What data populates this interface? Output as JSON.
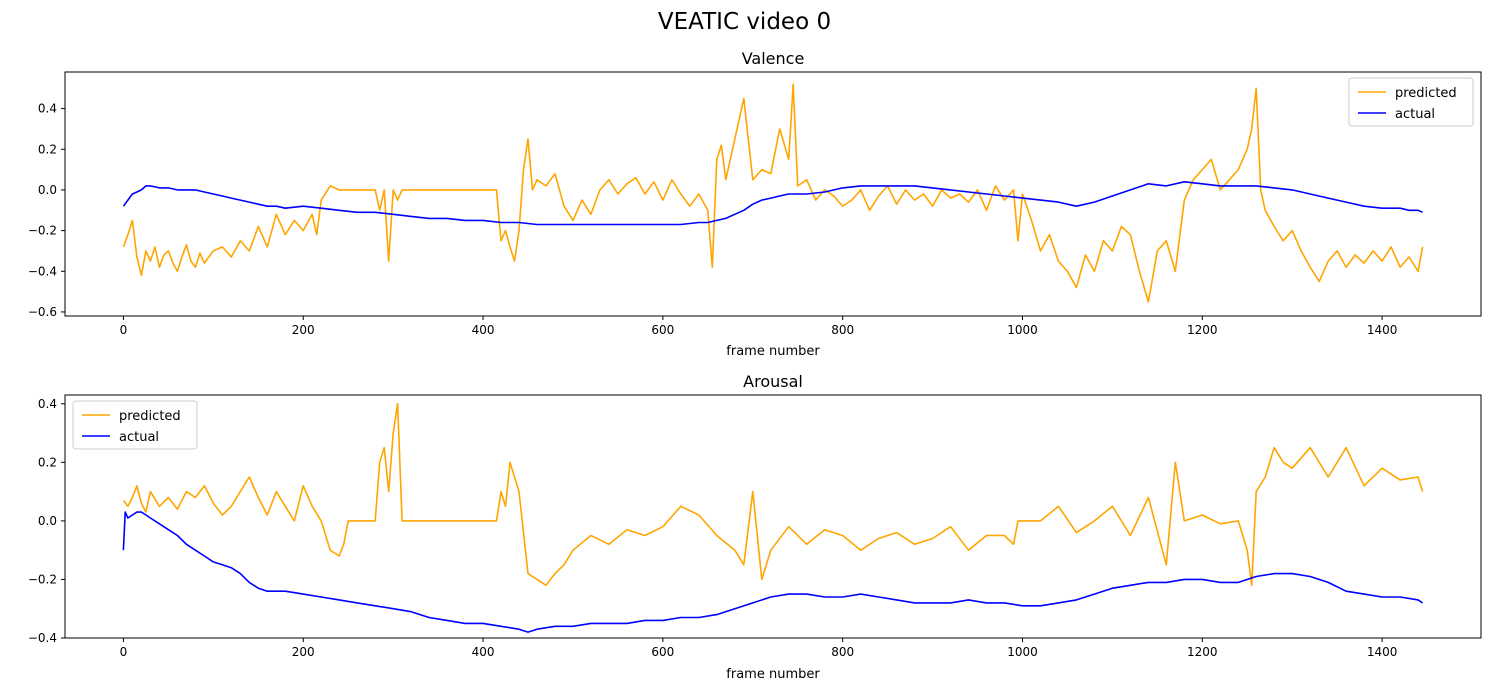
{
  "chart_data": {
    "title": "VEATIC video 0",
    "colors": {
      "predicted": "#FFA500",
      "actual": "#0000FF"
    },
    "subplots": [
      {
        "type": "line",
        "title": "Valence",
        "xlabel": "frame number",
        "ylabel": "",
        "xlim": [
          -65,
          1510
        ],
        "ylim": [
          -0.62,
          0.58
        ],
        "xticks": [
          0,
          200,
          400,
          600,
          800,
          1000,
          1200,
          1400
        ],
        "yticks": [
          -0.6,
          -0.4,
          -0.2,
          0.0,
          0.2,
          0.4
        ],
        "legend": "upper right",
        "series": [
          {
            "name": "predicted",
            "x": [
              0,
              5,
              10,
              15,
              20,
              25,
              30,
              35,
              40,
              45,
              50,
              55,
              60,
              65,
              70,
              75,
              80,
              85,
              90,
              95,
              100,
              110,
              120,
              130,
              140,
              150,
              160,
              170,
              180,
              190,
              200,
              210,
              215,
              220,
              230,
              240,
              250,
              260,
              270,
              280,
              285,
              290,
              295,
              300,
              305,
              310,
              320,
              340,
              360,
              380,
              400,
              415,
              420,
              425,
              430,
              435,
              440,
              445,
              450,
              455,
              460,
              470,
              480,
              490,
              500,
              510,
              520,
              530,
              540,
              550,
              560,
              570,
              580,
              590,
              600,
              610,
              620,
              630,
              640,
              650,
              655,
              660,
              665,
              670,
              680,
              690,
              700,
              710,
              720,
              730,
              740,
              745,
              750,
              760,
              770,
              780,
              790,
              800,
              810,
              820,
              830,
              840,
              850,
              860,
              870,
              880,
              890,
              900,
              910,
              920,
              930,
              940,
              950,
              960,
              970,
              980,
              990,
              995,
              1000,
              1010,
              1020,
              1030,
              1040,
              1050,
              1060,
              1070,
              1080,
              1090,
              1100,
              1110,
              1120,
              1130,
              1140,
              1150,
              1160,
              1170,
              1180,
              1190,
              1200,
              1210,
              1220,
              1230,
              1240,
              1250,
              1255,
              1260,
              1265,
              1270,
              1280,
              1290,
              1300,
              1310,
              1320,
              1330,
              1340,
              1350,
              1360,
              1370,
              1380,
              1390,
              1400,
              1410,
              1420,
              1430,
              1440,
              1445
            ],
            "y": [
              -0.28,
              -0.22,
              -0.15,
              -0.33,
              -0.42,
              -0.3,
              -0.35,
              -0.28,
              -0.38,
              -0.32,
              -0.3,
              -0.36,
              -0.4,
              -0.33,
              -0.27,
              -0.35,
              -0.38,
              -0.31,
              -0.36,
              -0.33,
              -0.3,
              -0.28,
              -0.33,
              -0.25,
              -0.3,
              -0.18,
              -0.28,
              -0.12,
              -0.22,
              -0.15,
              -0.2,
              -0.12,
              -0.22,
              -0.05,
              0.02,
              0.0,
              0.0,
              0.0,
              0.0,
              0.0,
              -0.1,
              0.0,
              -0.35,
              0.0,
              -0.05,
              0.0,
              0.0,
              0.0,
              0.0,
              0.0,
              0.0,
              0.0,
              -0.25,
              -0.2,
              -0.28,
              -0.35,
              -0.2,
              0.1,
              0.25,
              0.0,
              0.05,
              0.02,
              0.08,
              -0.08,
              -0.15,
              -0.05,
              -0.12,
              0.0,
              0.05,
              -0.02,
              0.03,
              0.06,
              -0.02,
              0.04,
              -0.05,
              0.05,
              -0.02,
              -0.08,
              -0.02,
              -0.1,
              -0.38,
              0.15,
              0.22,
              0.05,
              0.25,
              0.45,
              0.05,
              0.1,
              0.08,
              0.3,
              0.15,
              0.52,
              0.02,
              0.05,
              -0.05,
              0.0,
              -0.03,
              -0.08,
              -0.05,
              0.0,
              -0.1,
              -0.03,
              0.02,
              -0.07,
              0.0,
              -0.05,
              -0.02,
              -0.08,
              0.0,
              -0.04,
              -0.02,
              -0.06,
              0.0,
              -0.1,
              0.02,
              -0.05,
              0.0,
              -0.25,
              -0.02,
              -0.15,
              -0.3,
              -0.22,
              -0.35,
              -0.4,
              -0.48,
              -0.32,
              -0.4,
              -0.25,
              -0.3,
              -0.18,
              -0.22,
              -0.4,
              -0.55,
              -0.3,
              -0.25,
              -0.4,
              -0.05,
              0.05,
              0.1,
              0.15,
              0.0,
              0.05,
              0.1,
              0.2,
              0.3,
              0.5,
              0.0,
              -0.1,
              -0.18,
              -0.25,
              -0.2,
              -0.3,
              -0.38,
              -0.45,
              -0.35,
              -0.3,
              -0.38,
              -0.32,
              -0.36,
              -0.3,
              -0.35,
              -0.28,
              -0.38,
              -0.33,
              -0.4,
              -0.28
            ]
          },
          {
            "name": "actual",
            "x": [
              0,
              5,
              10,
              15,
              20,
              25,
              30,
              40,
              50,
              60,
              70,
              80,
              90,
              100,
              110,
              120,
              130,
              140,
              150,
              160,
              170,
              180,
              200,
              220,
              240,
              260,
              280,
              300,
              320,
              340,
              360,
              380,
              400,
              420,
              440,
              460,
              480,
              500,
              520,
              540,
              560,
              580,
              600,
              620,
              640,
              650,
              660,
              670,
              680,
              690,
              700,
              710,
              720,
              730,
              740,
              760,
              780,
              800,
              820,
              840,
              860,
              880,
              900,
              920,
              940,
              960,
              980,
              1000,
              1020,
              1040,
              1060,
              1080,
              1100,
              1120,
              1140,
              1160,
              1180,
              1200,
              1220,
              1240,
              1260,
              1280,
              1300,
              1320,
              1340,
              1360,
              1380,
              1400,
              1420,
              1430,
              1440,
              1445
            ],
            "y": [
              -0.08,
              -0.05,
              -0.02,
              -0.01,
              0.0,
              0.02,
              0.02,
              0.01,
              0.01,
              0.0,
              0.0,
              0.0,
              -0.01,
              -0.02,
              -0.03,
              -0.04,
              -0.05,
              -0.06,
              -0.07,
              -0.08,
              -0.08,
              -0.09,
              -0.08,
              -0.09,
              -0.1,
              -0.11,
              -0.11,
              -0.12,
              -0.13,
              -0.14,
              -0.14,
              -0.15,
              -0.15,
              -0.16,
              -0.16,
              -0.17,
              -0.17,
              -0.17,
              -0.17,
              -0.17,
              -0.17,
              -0.17,
              -0.17,
              -0.17,
              -0.16,
              -0.16,
              -0.15,
              -0.14,
              -0.12,
              -0.1,
              -0.07,
              -0.05,
              -0.04,
              -0.03,
              -0.02,
              -0.02,
              -0.01,
              0.01,
              0.02,
              0.02,
              0.02,
              0.02,
              0.01,
              0.0,
              -0.01,
              -0.02,
              -0.03,
              -0.04,
              -0.05,
              -0.06,
              -0.08,
              -0.06,
              -0.03,
              0.0,
              0.03,
              0.02,
              0.04,
              0.03,
              0.02,
              0.02,
              0.02,
              0.01,
              0.0,
              -0.02,
              -0.04,
              -0.06,
              -0.08,
              -0.09,
              -0.09,
              -0.1,
              -0.1,
              -0.11
            ]
          }
        ]
      },
      {
        "type": "line",
        "title": "Arousal",
        "xlabel": "frame number",
        "ylabel": "",
        "xlim": [
          -65,
          1510
        ],
        "ylim": [
          -0.4,
          0.43
        ],
        "xticks": [
          0,
          200,
          400,
          600,
          800,
          1000,
          1200,
          1400
        ],
        "yticks": [
          -0.4,
          -0.2,
          0.0,
          0.2,
          0.4
        ],
        "legend": "upper left",
        "series": [
          {
            "name": "predicted",
            "x": [
              0,
              5,
              10,
              15,
              20,
              25,
              30,
              40,
              50,
              60,
              70,
              80,
              90,
              100,
              110,
              120,
              130,
              140,
              150,
              160,
              170,
              180,
              190,
              200,
              210,
              220,
              230,
              240,
              245,
              250,
              270,
              280,
              285,
              290,
              295,
              300,
              305,
              310,
              320,
              340,
              360,
              380,
              400,
              415,
              420,
              425,
              430,
              440,
              450,
              460,
              470,
              480,
              490,
              500,
              520,
              540,
              560,
              580,
              600,
              620,
              640,
              660,
              680,
              690,
              700,
              710,
              720,
              740,
              760,
              780,
              800,
              820,
              840,
              860,
              880,
              900,
              920,
              940,
              960,
              980,
              990,
              995,
              1000,
              1020,
              1040,
              1060,
              1080,
              1100,
              1120,
              1140,
              1160,
              1170,
              1180,
              1200,
              1220,
              1240,
              1250,
              1255,
              1260,
              1270,
              1280,
              1290,
              1300,
              1320,
              1340,
              1360,
              1380,
              1400,
              1420,
              1440,
              1445
            ],
            "y": [
              0.07,
              0.05,
              0.08,
              0.12,
              0.06,
              0.03,
              0.1,
              0.05,
              0.08,
              0.04,
              0.1,
              0.08,
              0.12,
              0.06,
              0.02,
              0.05,
              0.1,
              0.15,
              0.08,
              0.02,
              0.1,
              0.05,
              0.0,
              0.12,
              0.05,
              0.0,
              -0.1,
              -0.12,
              -0.08,
              0.0,
              0.0,
              0.0,
              0.2,
              0.25,
              0.1,
              0.3,
              0.4,
              0.0,
              0.0,
              0.0,
              0.0,
              0.0,
              0.0,
              0.0,
              0.1,
              0.05,
              0.2,
              0.1,
              -0.18,
              -0.2,
              -0.22,
              -0.18,
              -0.15,
              -0.1,
              -0.05,
              -0.08,
              -0.03,
              -0.05,
              -0.02,
              0.05,
              0.02,
              -0.05,
              -0.1,
              -0.15,
              0.1,
              -0.2,
              -0.1,
              -0.02,
              -0.08,
              -0.03,
              -0.05,
              -0.1,
              -0.06,
              -0.04,
              -0.08,
              -0.06,
              -0.02,
              -0.1,
              -0.05,
              -0.05,
              -0.08,
              0.0,
              0.0,
              0.0,
              0.05,
              -0.04,
              0.0,
              0.05,
              -0.05,
              0.08,
              -0.15,
              0.2,
              0.0,
              0.02,
              -0.01,
              0.0,
              -0.1,
              -0.22,
              0.1,
              0.15,
              0.25,
              0.2,
              0.18,
              0.25,
              0.15,
              0.25,
              0.12,
              0.18,
              0.14,
              0.15,
              0.1
            ]
          },
          {
            "name": "actual",
            "x": [
              0,
              2,
              5,
              10,
              15,
              20,
              25,
              30,
              40,
              50,
              60,
              70,
              80,
              90,
              100,
              110,
              120,
              130,
              140,
              150,
              160,
              170,
              180,
              200,
              220,
              240,
              260,
              280,
              300,
              320,
              340,
              360,
              380,
              400,
              420,
              440,
              450,
              460,
              480,
              500,
              520,
              540,
              560,
              580,
              600,
              620,
              640,
              660,
              680,
              700,
              720,
              740,
              760,
              780,
              800,
              820,
              840,
              860,
              880,
              900,
              920,
              940,
              960,
              980,
              1000,
              1020,
              1040,
              1060,
              1080,
              1100,
              1120,
              1140,
              1160,
              1180,
              1200,
              1220,
              1240,
              1260,
              1280,
              1300,
              1320,
              1340,
              1360,
              1380,
              1400,
              1420,
              1440,
              1445
            ],
            "y": [
              -0.1,
              0.03,
              0.01,
              0.02,
              0.03,
              0.03,
              0.02,
              0.01,
              -0.01,
              -0.03,
              -0.05,
              -0.08,
              -0.1,
              -0.12,
              -0.14,
              -0.15,
              -0.16,
              -0.18,
              -0.21,
              -0.23,
              -0.24,
              -0.24,
              -0.24,
              -0.25,
              -0.26,
              -0.27,
              -0.28,
              -0.29,
              -0.3,
              -0.31,
              -0.33,
              -0.34,
              -0.35,
              -0.35,
              -0.36,
              -0.37,
              -0.38,
              -0.37,
              -0.36,
              -0.36,
              -0.35,
              -0.35,
              -0.35,
              -0.34,
              -0.34,
              -0.33,
              -0.33,
              -0.32,
              -0.3,
              -0.28,
              -0.26,
              -0.25,
              -0.25,
              -0.26,
              -0.26,
              -0.25,
              -0.26,
              -0.27,
              -0.28,
              -0.28,
              -0.28,
              -0.27,
              -0.28,
              -0.28,
              -0.29,
              -0.29,
              -0.28,
              -0.27,
              -0.25,
              -0.23,
              -0.22,
              -0.21,
              -0.21,
              -0.2,
              -0.2,
              -0.21,
              -0.21,
              -0.19,
              -0.18,
              -0.18,
              -0.19,
              -0.21,
              -0.24,
              -0.25,
              -0.26,
              -0.26,
              -0.27,
              -0.28
            ]
          }
        ]
      }
    ]
  }
}
